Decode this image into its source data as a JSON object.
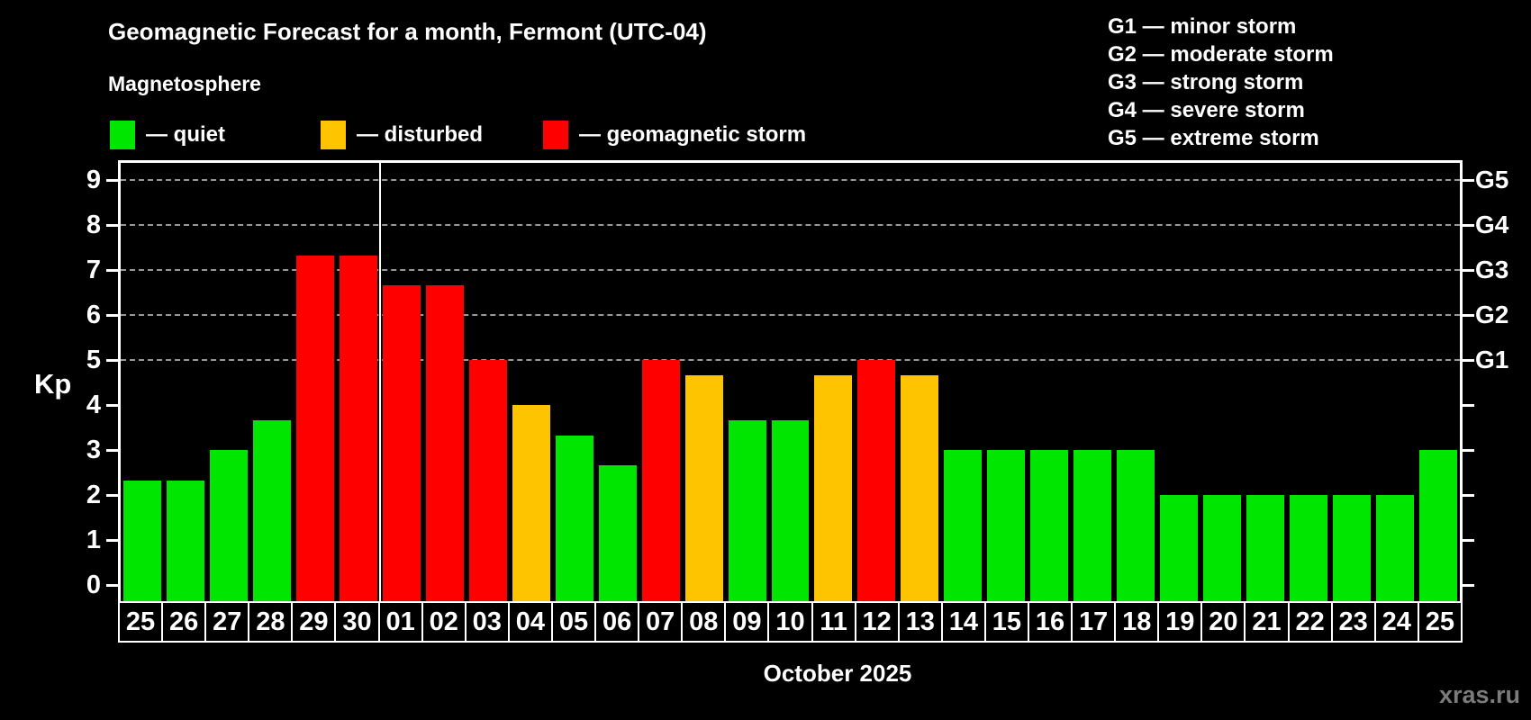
{
  "header": {
    "title": "Geomagnetic Forecast for a month, Fermont (UTC-04)",
    "subtitle": "Magnetosphere",
    "legend": [
      {
        "key": "quiet",
        "label": "— quiet"
      },
      {
        "key": "disturbed",
        "label": "— disturbed"
      },
      {
        "key": "storm",
        "label": "— geomagnetic storm"
      }
    ],
    "g_scale_legend": [
      "G1 — minor storm",
      "G2 — moderate storm",
      "G3 — strong storm",
      "G4 — severe storm",
      "G5 — extreme storm"
    ]
  },
  "chart_data": {
    "type": "bar",
    "title": "Geomagnetic Forecast for a month, Fermont (UTC-04)",
    "ylabel": "Kp",
    "xlabel": "October 2025",
    "ylim": [
      0,
      9.4
    ],
    "yticks": [
      0,
      1,
      2,
      3,
      4,
      5,
      6,
      7,
      8,
      9
    ],
    "gridlines_at": [
      5,
      6,
      7,
      8,
      9
    ],
    "grid": "dashed horizontal at Kp 5-9",
    "right_axis_labels": [
      {
        "label": "G1",
        "kp": 5
      },
      {
        "label": "G2",
        "kp": 6
      },
      {
        "label": "G3",
        "kp": 7
      },
      {
        "label": "G4",
        "kp": 8
      },
      {
        "label": "G5",
        "kp": 9
      }
    ],
    "month_divider_after_index": 5,
    "categories": [
      "25",
      "26",
      "27",
      "28",
      "29",
      "30",
      "01",
      "02",
      "03",
      "04",
      "05",
      "06",
      "07",
      "08",
      "09",
      "10",
      "11",
      "12",
      "13",
      "14",
      "15",
      "16",
      "17",
      "18",
      "19",
      "20",
      "21",
      "22",
      "23",
      "24",
      "25"
    ],
    "values": [
      2.33,
      2.33,
      3,
      3.67,
      7.33,
      7.33,
      6.67,
      6.67,
      5,
      4,
      3.33,
      2.67,
      5,
      4.67,
      3.67,
      3.67,
      4.67,
      5,
      4.67,
      3,
      3,
      3,
      3,
      3,
      2,
      2,
      2,
      2,
      2,
      2,
      3
    ],
    "statuses": [
      "quiet",
      "quiet",
      "quiet",
      "quiet",
      "storm",
      "storm",
      "storm",
      "storm",
      "storm",
      "disturbed",
      "quiet",
      "quiet",
      "storm",
      "disturbed",
      "quiet",
      "quiet",
      "disturbed",
      "storm",
      "disturbed",
      "quiet",
      "quiet",
      "quiet",
      "quiet",
      "quiet",
      "quiet",
      "quiet",
      "quiet",
      "quiet",
      "quiet",
      "quiet",
      "quiet"
    ],
    "colors": {
      "quiet": "#00e600",
      "disturbed": "#ffc400",
      "storm": "#ff0000",
      "axis": "#ffffff",
      "gridline": "#999999",
      "background": "#000000"
    }
  },
  "footer": {
    "month_label": "October 2025",
    "watermark": "xras.ru"
  }
}
